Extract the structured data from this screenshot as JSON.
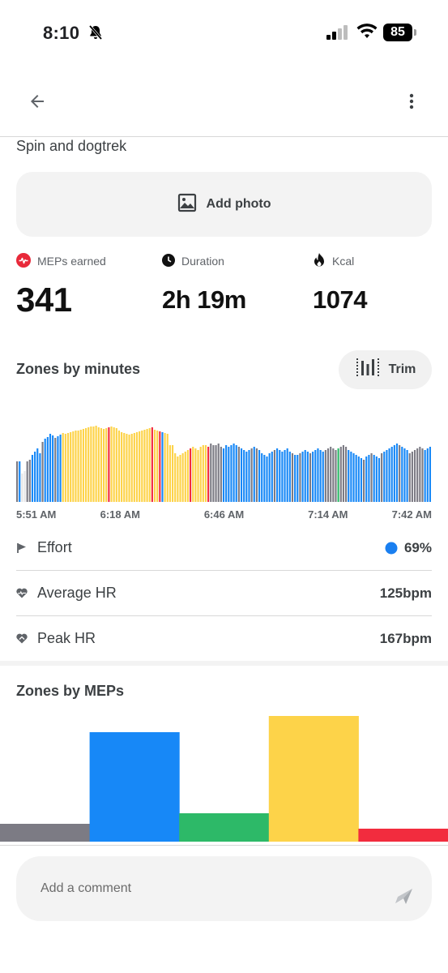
{
  "status_bar": {
    "time": "8:10",
    "battery": "85"
  },
  "activity": {
    "title": "Spin and dogtrek",
    "add_photo_label": "Add photo"
  },
  "stats": {
    "meps": {
      "label": "MEPs earned",
      "value": "341",
      "icon": "heart-pulse-icon",
      "color": "#e8293a"
    },
    "duration": {
      "label": "Duration",
      "value": "2h 19m",
      "icon": "clock-icon"
    },
    "kcal": {
      "label": "Kcal",
      "value": "1074",
      "icon": "flame-icon"
    }
  },
  "zones_by_minutes": {
    "title": "Zones by minutes",
    "trim_label": "Trim"
  },
  "metrics": {
    "effort": {
      "label": "Effort",
      "value": "69%",
      "dot_color": "#1a7ff0",
      "icon": "flag-icon"
    },
    "average_hr": {
      "label": "Average HR",
      "value": "125bpm",
      "icon": "heart-rate-icon"
    },
    "peak_hr": {
      "label": "Peak HR",
      "value": "167bpm",
      "icon": "heart-peak-icon"
    }
  },
  "zones_by_meps": {
    "title": "Zones by MEPs"
  },
  "comment": {
    "placeholder": "Add a comment",
    "send_icon": "send-icon"
  },
  "zone_colors": {
    "gray": "#7c7b84",
    "blue": "#1788f7",
    "green": "#2db968",
    "yellow": "#fdd349",
    "red": "#f22c3e",
    "light": "#e6e6e8"
  },
  "chart_data": [
    {
      "type": "bar",
      "name": "zones-by-minutes",
      "x_tick_labels": [
        "5:51 AM",
        "6:18 AM",
        "6:46 AM",
        "7:14 AM",
        "7:42 AM"
      ],
      "zones": "gbllggbbbbgbbbbgbbyyyyyyyyyyyyyyyyyyryyyyyyyyyyyyyyyyryyrbyyyyyyyyyyryyyyyyrgggggbbbbbbbbbbbgbbbbbbbbgbbbbbbbbbgbbbbbbbbbggggggggbbbbbbbbbbgbbbbbbbbbbbbbbggggggbbbbbbbbbbbggbbbbbbgbbbbb",
      "values": [
        50,
        50,
        35,
        38,
        50,
        52,
        58,
        62,
        66,
        60,
        74,
        78,
        80,
        84,
        82,
        79,
        81,
        83,
        85,
        84,
        85,
        86,
        87,
        88,
        88,
        89,
        90,
        91,
        92,
        93,
        93,
        94,
        92,
        91,
        90,
        91,
        92,
        93,
        92,
        91,
        88,
        86,
        85,
        84,
        83,
        84,
        85,
        86,
        87,
        88,
        89,
        90,
        91,
        92,
        89,
        88,
        87,
        86,
        85,
        84,
        70,
        70,
        60,
        56,
        58,
        60,
        62,
        64,
        66,
        68,
        66,
        64,
        68,
        70,
        70,
        68,
        72,
        70,
        70,
        72,
        68,
        66,
        70,
        68,
        70,
        72,
        70,
        68,
        66,
        64,
        62,
        64,
        66,
        68,
        66,
        64,
        60,
        58,
        56,
        60,
        62,
        64,
        66,
        64,
        62,
        64,
        66,
        62,
        60,
        58,
        58,
        60,
        62,
        64,
        62,
        60,
        62,
        64,
        66,
        64,
        62,
        64,
        66,
        68,
        66,
        64,
        66,
        68,
        70,
        68,
        64,
        62,
        60,
        58,
        56,
        54,
        52,
        56,
        58,
        60,
        58,
        56,
        54,
        60,
        62,
        64,
        66,
        68,
        70,
        72,
        70,
        68,
        66,
        64,
        60,
        62,
        64,
        66,
        68,
        66,
        64,
        66,
        68
      ]
    },
    {
      "type": "bar",
      "name": "zones-by-meps",
      "categories": [
        "gray",
        "blue",
        "green",
        "yellow",
        "red"
      ],
      "values": [
        22,
        135,
        35,
        155,
        16
      ]
    }
  ]
}
